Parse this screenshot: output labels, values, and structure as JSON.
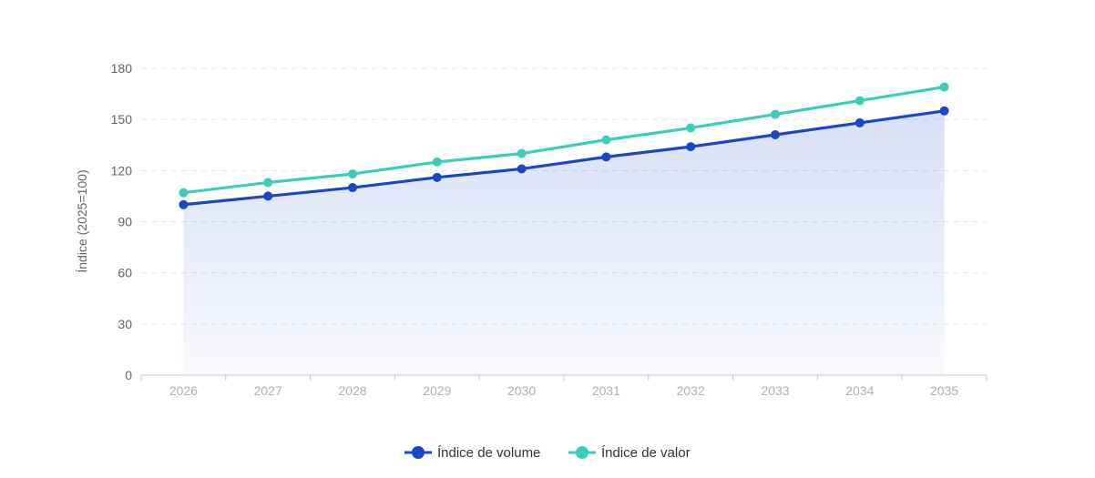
{
  "chart_data": {
    "type": "line",
    "x": [
      "2026",
      "2027",
      "2028",
      "2029",
      "2030",
      "2031",
      "2032",
      "2033",
      "2034",
      "2035"
    ],
    "series": [
      {
        "name": "Índice de volume",
        "values": [
          100,
          105,
          110,
          116,
          121,
          128,
          134,
          141,
          148,
          155
        ],
        "color": "#1a47c8",
        "area": true
      },
      {
        "name": "Índice de valor",
        "values": [
          107,
          113,
          118,
          125,
          130,
          138,
          145,
          153,
          161,
          169
        ],
        "color": "#3ccdb8",
        "area": false
      }
    ],
    "ylabel": "Índice (2025=100)",
    "xlabel": "",
    "ylim": [
      0,
      180
    ],
    "yticks": [
      0,
      30,
      60,
      90,
      120,
      150,
      180
    ],
    "grid": true,
    "legend_position": "bottom-center"
  }
}
